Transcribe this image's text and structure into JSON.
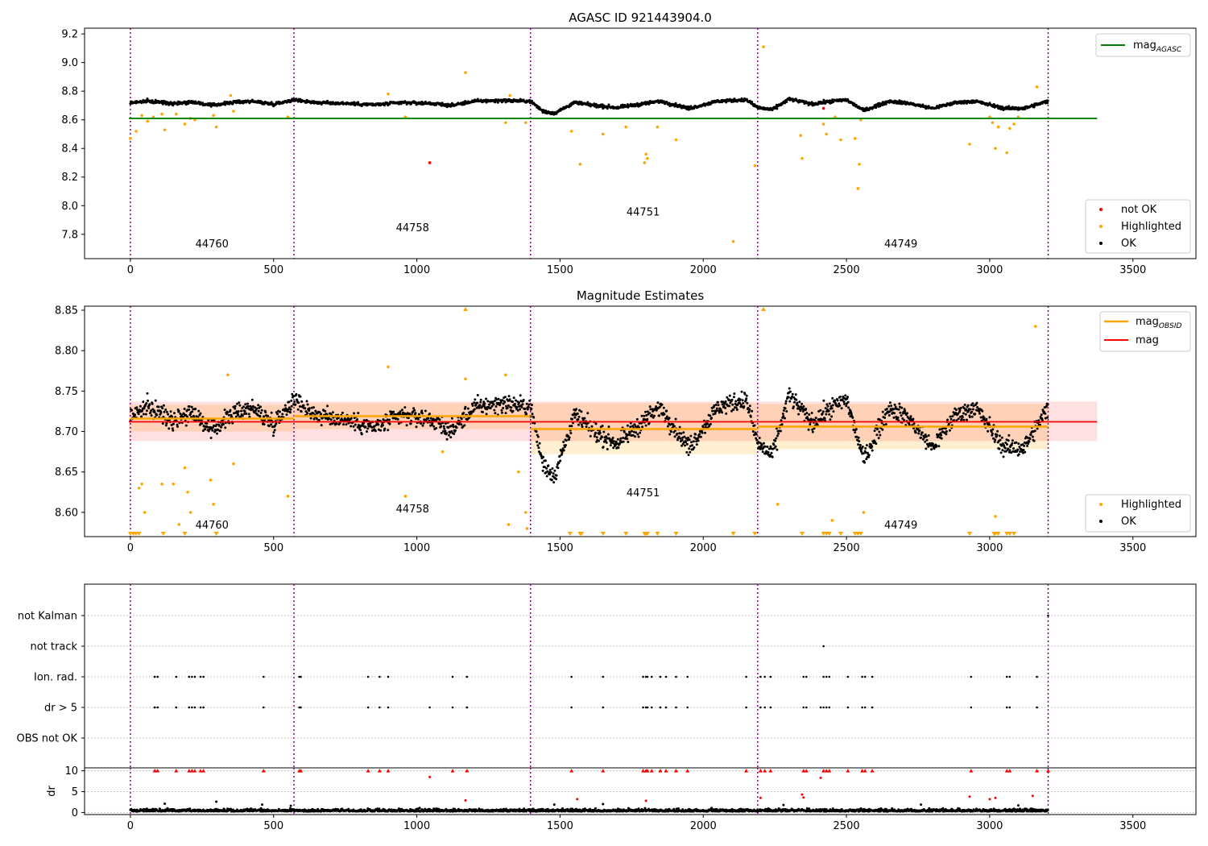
{
  "chart_data": [
    {
      "type": "scatter",
      "panel": "agasc",
      "title": "AGASC ID 921443904.0",
      "xlim": [
        -160,
        3720
      ],
      "ylim": [
        7.63,
        9.24
      ],
      "x_ticks": [
        0,
        500,
        1000,
        1500,
        2000,
        2500,
        3000,
        3500
      ],
      "y_ticks": [
        7.8,
        8.0,
        8.2,
        8.4,
        8.6,
        8.8,
        9.0,
        9.2
      ],
      "obsid_boundaries": [
        0,
        571,
        1397,
        2190,
        3204
      ],
      "obsid_labels": [
        {
          "label": "44760",
          "x": 285,
          "y": 7.71
        },
        {
          "label": "44758",
          "x": 985,
          "y": 7.82
        },
        {
          "label": "44751",
          "x": 1790,
          "y": 7.93
        },
        {
          "label": "44749",
          "x": 2690,
          "y": 7.71
        }
      ],
      "reference_lines": [
        {
          "name": "mag_AGASC",
          "y": 8.61,
          "x_range": [
            -5,
            3375
          ],
          "color": "#008000"
        }
      ],
      "ok_trend": [
        [
          0,
          8.72
        ],
        [
          60,
          8.73
        ],
        [
          150,
          8.715
        ],
        [
          220,
          8.725
        ],
        [
          280,
          8.7
        ],
        [
          350,
          8.72
        ],
        [
          420,
          8.73
        ],
        [
          500,
          8.71
        ],
        [
          571,
          8.74
        ],
        [
          650,
          8.72
        ],
        [
          750,
          8.715
        ],
        [
          850,
          8.705
        ],
        [
          950,
          8.72
        ],
        [
          1050,
          8.715
        ],
        [
          1120,
          8.7
        ],
        [
          1200,
          8.73
        ],
        [
          1300,
          8.735
        ],
        [
          1397,
          8.73
        ],
        [
          1440,
          8.66
        ],
        [
          1480,
          8.645
        ],
        [
          1550,
          8.72
        ],
        [
          1620,
          8.7
        ],
        [
          1700,
          8.685
        ],
        [
          1800,
          8.715
        ],
        [
          1850,
          8.73
        ],
        [
          1950,
          8.68
        ],
        [
          2050,
          8.73
        ],
        [
          2150,
          8.74
        ],
        [
          2190,
          8.685
        ],
        [
          2240,
          8.67
        ],
        [
          2300,
          8.745
        ],
        [
          2380,
          8.71
        ],
        [
          2450,
          8.73
        ],
        [
          2500,
          8.74
        ],
        [
          2560,
          8.665
        ],
        [
          2650,
          8.73
        ],
        [
          2720,
          8.715
        ],
        [
          2800,
          8.68
        ],
        [
          2880,
          8.72
        ],
        [
          2950,
          8.73
        ],
        [
          3050,
          8.68
        ],
        [
          3120,
          8.68
        ],
        [
          3204,
          8.73
        ]
      ],
      "highlighted_points": [
        [
          0,
          8.47
        ],
        [
          20,
          8.52
        ],
        [
          40,
          8.63
        ],
        [
          60,
          8.59
        ],
        [
          80,
          8.62
        ],
        [
          110,
          8.64
        ],
        [
          120,
          8.53
        ],
        [
          160,
          8.64
        ],
        [
          190,
          8.57
        ],
        [
          210,
          8.61
        ],
        [
          225,
          8.6
        ],
        [
          290,
          8.63
        ],
        [
          300,
          8.55
        ],
        [
          350,
          8.77
        ],
        [
          360,
          8.66
        ],
        [
          550,
          8.62
        ],
        [
          900,
          8.78
        ],
        [
          960,
          8.62
        ],
        [
          1170,
          8.93
        ],
        [
          1310,
          8.58
        ],
        [
          1325,
          8.77
        ],
        [
          1380,
          8.58
        ],
        [
          1540,
          8.52
        ],
        [
          1570,
          8.29
        ],
        [
          1650,
          8.5
        ],
        [
          1730,
          8.55
        ],
        [
          1795,
          8.3
        ],
        [
          1800,
          8.36
        ],
        [
          1805,
          8.33
        ],
        [
          1840,
          8.55
        ],
        [
          1905,
          8.46
        ],
        [
          2105,
          7.75
        ],
        [
          2180,
          8.28
        ],
        [
          2210,
          9.11
        ],
        [
          2340,
          8.49
        ],
        [
          2345,
          8.33
        ],
        [
          2420,
          8.57
        ],
        [
          2430,
          8.5
        ],
        [
          2460,
          8.62
        ],
        [
          2480,
          8.46
        ],
        [
          2530,
          8.47
        ],
        [
          2540,
          8.12
        ],
        [
          2545,
          8.29
        ],
        [
          2550,
          8.6
        ],
        [
          2930,
          8.43
        ],
        [
          3000,
          8.62
        ],
        [
          3010,
          8.58
        ],
        [
          3020,
          8.4
        ],
        [
          3030,
          8.55
        ],
        [
          3060,
          8.37
        ],
        [
          3070,
          8.54
        ],
        [
          3085,
          8.57
        ],
        [
          3100,
          8.62
        ],
        [
          3165,
          8.83
        ]
      ],
      "not_ok_points": [
        [
          1045,
          8.3
        ],
        [
          2420,
          8.68
        ]
      ],
      "legends": [
        {
          "position": "upper right",
          "entries": [
            {
              "label": "mag",
              "subscript": "AGASC",
              "kind": "line",
              "color": "#008000"
            }
          ]
        },
        {
          "position": "lower right",
          "entries": [
            {
              "label": "not OK",
              "kind": "marker",
              "color": "#ff0000"
            },
            {
              "label": "Highlighted",
              "kind": "marker",
              "color": "#ffa500"
            },
            {
              "label": "OK",
              "kind": "marker",
              "color": "#000000"
            }
          ]
        }
      ]
    },
    {
      "type": "scatter",
      "panel": "estimates",
      "title": "Magnitude Estimates",
      "xlim": [
        -160,
        3720
      ],
      "ylim": [
        8.57,
        8.855
      ],
      "x_ticks": [
        0,
        500,
        1000,
        1500,
        2000,
        2500,
        3000,
        3500
      ],
      "y_ticks": [
        8.6,
        8.65,
        8.7,
        8.75,
        8.8,
        8.85
      ],
      "obsid_boundaries": [
        0,
        571,
        1397,
        2190,
        3204
      ],
      "obsid_labels": [
        {
          "label": "44760",
          "x": 285,
          "y": 8.58
        },
        {
          "label": "44758",
          "x": 985,
          "y": 8.6
        },
        {
          "label": "44751",
          "x": 1790,
          "y": 8.62
        },
        {
          "label": "44749",
          "x": 2690,
          "y": 8.58
        }
      ],
      "mag": {
        "value": 8.712,
        "band": [
          8.688,
          8.737
        ],
        "x_range": [
          -5,
          3375
        ],
        "color": "#ff0000"
      },
      "mag_obsid": [
        {
          "x_range": [
            0,
            571
          ],
          "value": 8.716,
          "band": [
            8.7,
            8.733
          ]
        },
        {
          "x_range": [
            571,
            1397
          ],
          "value": 8.719,
          "band": [
            8.703,
            8.735
          ]
        },
        {
          "x_range": [
            1397,
            2190
          ],
          "value": 8.703,
          "band": [
            8.672,
            8.735
          ]
        },
        {
          "x_range": [
            2190,
            3204
          ],
          "value": 8.706,
          "band": [
            8.678,
            8.734
          ]
        }
      ],
      "ok_trend": [
        [
          0,
          8.72
        ],
        [
          60,
          8.73
        ],
        [
          150,
          8.715
        ],
        [
          220,
          8.725
        ],
        [
          280,
          8.7
        ],
        [
          350,
          8.72
        ],
        [
          420,
          8.73
        ],
        [
          500,
          8.71
        ],
        [
          571,
          8.74
        ],
        [
          650,
          8.72
        ],
        [
          750,
          8.715
        ],
        [
          850,
          8.705
        ],
        [
          950,
          8.72
        ],
        [
          1050,
          8.715
        ],
        [
          1120,
          8.7
        ],
        [
          1200,
          8.73
        ],
        [
          1300,
          8.735
        ],
        [
          1397,
          8.73
        ],
        [
          1440,
          8.66
        ],
        [
          1480,
          8.645
        ],
        [
          1550,
          8.72
        ],
        [
          1620,
          8.7
        ],
        [
          1700,
          8.685
        ],
        [
          1800,
          8.715
        ],
        [
          1850,
          8.73
        ],
        [
          1950,
          8.68
        ],
        [
          2050,
          8.73
        ],
        [
          2150,
          8.74
        ],
        [
          2190,
          8.685
        ],
        [
          2240,
          8.67
        ],
        [
          2300,
          8.745
        ],
        [
          2380,
          8.71
        ],
        [
          2450,
          8.73
        ],
        [
          2500,
          8.74
        ],
        [
          2560,
          8.665
        ],
        [
          2650,
          8.73
        ],
        [
          2720,
          8.715
        ],
        [
          2800,
          8.68
        ],
        [
          2880,
          8.72
        ],
        [
          2950,
          8.73
        ],
        [
          3050,
          8.68
        ],
        [
          3120,
          8.68
        ],
        [
          3204,
          8.73
        ]
      ],
      "highlighted_points": [
        [
          30,
          8.63
        ],
        [
          40,
          8.635
        ],
        [
          50,
          8.6
        ],
        [
          110,
          8.635
        ],
        [
          150,
          8.635
        ],
        [
          170,
          8.585
        ],
        [
          190,
          8.655
        ],
        [
          200,
          8.625
        ],
        [
          210,
          8.6
        ],
        [
          280,
          8.64
        ],
        [
          290,
          8.61
        ],
        [
          340,
          8.77
        ],
        [
          360,
          8.66
        ],
        [
          550,
          8.62
        ],
        [
          900,
          8.78
        ],
        [
          960,
          8.62
        ],
        [
          1090,
          8.675
        ],
        [
          1170,
          8.765
        ],
        [
          1310,
          8.77
        ],
        [
          1320,
          8.585
        ],
        [
          1355,
          8.65
        ],
        [
          1380,
          8.6
        ],
        [
          1385,
          8.58
        ],
        [
          2260,
          8.61
        ],
        [
          2450,
          8.59
        ],
        [
          2560,
          8.6
        ],
        [
          3020,
          8.595
        ],
        [
          3160,
          8.83
        ]
      ],
      "below_range_markers": [
        0,
        10,
        20,
        30,
        115,
        190,
        300,
        1535,
        1570,
        1575,
        1650,
        1730,
        1795,
        1800,
        1805,
        1840,
        1905,
        2105,
        2180,
        2345,
        2420,
        2430,
        2440,
        2480,
        2530,
        2540,
        2550,
        2930,
        3015,
        3020,
        3030,
        3060,
        3070,
        3085
      ],
      "above_range_markers": [
        1170,
        2210
      ],
      "legends": [
        {
          "position": "upper right",
          "entries": [
            {
              "label": "mag",
              "subscript": "OBSID",
              "kind": "line",
              "color": "#ffa500"
            },
            {
              "label": "mag",
              "kind": "line",
              "color": "#ff0000"
            }
          ]
        },
        {
          "position": "lower right",
          "entries": [
            {
              "label": "Highlighted",
              "kind": "marker",
              "color": "#ffa500"
            },
            {
              "label": "OK",
              "kind": "marker",
              "color": "#000000"
            }
          ]
        }
      ]
    },
    {
      "type": "scatter",
      "panel": "flags",
      "xlim": [
        -160,
        3720
      ],
      "categories": [
        "not Kalman",
        "not track",
        "Ion. rad.",
        "dr > 5",
        "OBS not OK"
      ],
      "obsid_boundaries": [
        0,
        571,
        1397,
        2190,
        3204
      ],
      "flagged": {
        "not Kalman": [
          3204
        ],
        "not track": [
          2420
        ],
        "Ion. rad.": [
          85,
          95,
          160,
          205,
          215,
          225,
          245,
          255,
          465,
          590,
          595,
          830,
          870,
          900,
          1125,
          1175,
          1540,
          1650,
          1790,
          1800,
          1805,
          1820,
          1850,
          1870,
          1905,
          1945,
          2150,
          2200,
          2215,
          2235,
          2350,
          2360,
          2420,
          2430,
          2440,
          2505,
          2555,
          2565,
          2590,
          2935,
          3060,
          3070,
          3165
        ],
        "dr > 5": [
          85,
          95,
          160,
          205,
          215,
          225,
          245,
          255,
          465,
          590,
          595,
          830,
          870,
          900,
          1045,
          1125,
          1175,
          1540,
          1650,
          1790,
          1800,
          1805,
          1820,
          1850,
          1870,
          1905,
          1945,
          2150,
          2200,
          2215,
          2235,
          2350,
          2360,
          2410,
          2420,
          2430,
          2440,
          2505,
          2555,
          2565,
          2590,
          2935,
          3060,
          3070,
          3165
        ],
        "OBS not OK": []
      }
    },
    {
      "type": "scatter",
      "panel": "dr",
      "ylabel": "dr",
      "xlim": [
        -160,
        3720
      ],
      "ylim": [
        -0.5,
        10.7
      ],
      "x_ticks": [
        0,
        500,
        1000,
        1500,
        2000,
        2500,
        3000,
        3500
      ],
      "y_ticks": [
        0,
        5,
        10
      ],
      "obsid_boundaries": [
        0,
        571,
        1397,
        2190,
        3204
      ],
      "capped_markers_at_10": [
        85,
        95,
        160,
        205,
        215,
        225,
        245,
        255,
        465,
        590,
        595,
        830,
        870,
        900,
        1125,
        1175,
        1540,
        1650,
        1790,
        1800,
        1805,
        1820,
        1850,
        1870,
        1905,
        1945,
        2150,
        2200,
        2215,
        2235,
        2350,
        2360,
        2420,
        2430,
        2440,
        2505,
        2555,
        2565,
        2590,
        2935,
        3060,
        3070,
        3165,
        3204
      ],
      "red_points": [
        [
          1045,
          8.5
        ],
        [
          2410,
          8.3
        ],
        [
          2345,
          4.3
        ],
        [
          2350,
          3.6
        ],
        [
          2930,
          3.8
        ],
        [
          3000,
          3.2
        ],
        [
          3020,
          3.5
        ],
        [
          3150,
          4.0
        ],
        [
          1800,
          2.8
        ],
        [
          2200,
          3.5
        ],
        [
          1170,
          2.9
        ],
        [
          1560,
          3.2
        ]
      ],
      "ok_points": [
        [
          120,
          2.1
        ],
        [
          300,
          2.6
        ],
        [
          460,
          1.9
        ],
        [
          560,
          1.6
        ],
        [
          1480,
          1.9
        ],
        [
          1650,
          2.0
        ],
        [
          2280,
          1.8
        ],
        [
          2760,
          1.9
        ],
        [
          3100,
          1.7
        ]
      ]
    }
  ],
  "x_tick_labels": [
    "0",
    "500",
    "1000",
    "1500",
    "2000",
    "2500",
    "3000",
    "3500"
  ],
  "colors": {
    "ok": "#000000",
    "highlighted": "#ffa500",
    "not_ok": "#ff0000",
    "agasc_line": "#008000",
    "obsid_line": "#ffa500",
    "mag_line": "#ff0000",
    "mag_band": "rgba(255,0,0,0.12)",
    "obsid_band": "rgba(255,165,0,0.18)",
    "boundary": "#800080"
  }
}
